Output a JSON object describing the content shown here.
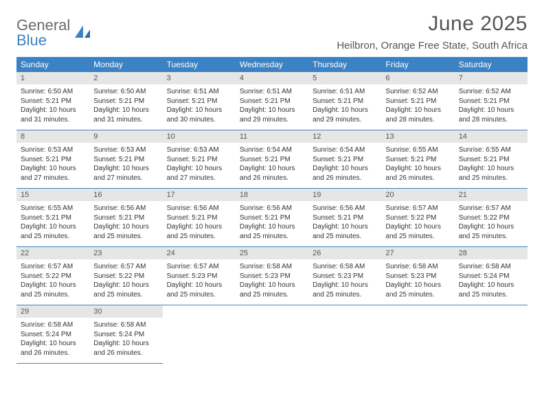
{
  "brand": {
    "word1": "General",
    "word2": "Blue"
  },
  "heading": {
    "title": "June 2025",
    "location": "Heilbron, Orange Free State, South Africa"
  },
  "style": {
    "header_bg": "#3b82c4",
    "header_text": "#ffffff",
    "daynum_bg": "#e6e6e6",
    "cell_border": "#3b82c4",
    "body_text": "#333333",
    "title_color": "#555555",
    "logo_gray": "#6b6b6b",
    "logo_blue": "#3b82c4"
  },
  "day_names": [
    "Sunday",
    "Monday",
    "Tuesday",
    "Wednesday",
    "Thursday",
    "Friday",
    "Saturday"
  ],
  "weeks": [
    [
      {
        "n": "1",
        "sr": "Sunrise: 6:50 AM",
        "ss": "Sunset: 5:21 PM",
        "d1": "Daylight: 10 hours",
        "d2": "and 31 minutes."
      },
      {
        "n": "2",
        "sr": "Sunrise: 6:50 AM",
        "ss": "Sunset: 5:21 PM",
        "d1": "Daylight: 10 hours",
        "d2": "and 31 minutes."
      },
      {
        "n": "3",
        "sr": "Sunrise: 6:51 AM",
        "ss": "Sunset: 5:21 PM",
        "d1": "Daylight: 10 hours",
        "d2": "and 30 minutes."
      },
      {
        "n": "4",
        "sr": "Sunrise: 6:51 AM",
        "ss": "Sunset: 5:21 PM",
        "d1": "Daylight: 10 hours",
        "d2": "and 29 minutes."
      },
      {
        "n": "5",
        "sr": "Sunrise: 6:51 AM",
        "ss": "Sunset: 5:21 PM",
        "d1": "Daylight: 10 hours",
        "d2": "and 29 minutes."
      },
      {
        "n": "6",
        "sr": "Sunrise: 6:52 AM",
        "ss": "Sunset: 5:21 PM",
        "d1": "Daylight: 10 hours",
        "d2": "and 28 minutes."
      },
      {
        "n": "7",
        "sr": "Sunrise: 6:52 AM",
        "ss": "Sunset: 5:21 PM",
        "d1": "Daylight: 10 hours",
        "d2": "and 28 minutes."
      }
    ],
    [
      {
        "n": "8",
        "sr": "Sunrise: 6:53 AM",
        "ss": "Sunset: 5:21 PM",
        "d1": "Daylight: 10 hours",
        "d2": "and 27 minutes."
      },
      {
        "n": "9",
        "sr": "Sunrise: 6:53 AM",
        "ss": "Sunset: 5:21 PM",
        "d1": "Daylight: 10 hours",
        "d2": "and 27 minutes."
      },
      {
        "n": "10",
        "sr": "Sunrise: 6:53 AM",
        "ss": "Sunset: 5:21 PM",
        "d1": "Daylight: 10 hours",
        "d2": "and 27 minutes."
      },
      {
        "n": "11",
        "sr": "Sunrise: 6:54 AM",
        "ss": "Sunset: 5:21 PM",
        "d1": "Daylight: 10 hours",
        "d2": "and 26 minutes."
      },
      {
        "n": "12",
        "sr": "Sunrise: 6:54 AM",
        "ss": "Sunset: 5:21 PM",
        "d1": "Daylight: 10 hours",
        "d2": "and 26 minutes."
      },
      {
        "n": "13",
        "sr": "Sunrise: 6:55 AM",
        "ss": "Sunset: 5:21 PM",
        "d1": "Daylight: 10 hours",
        "d2": "and 26 minutes."
      },
      {
        "n": "14",
        "sr": "Sunrise: 6:55 AM",
        "ss": "Sunset: 5:21 PM",
        "d1": "Daylight: 10 hours",
        "d2": "and 25 minutes."
      }
    ],
    [
      {
        "n": "15",
        "sr": "Sunrise: 6:55 AM",
        "ss": "Sunset: 5:21 PM",
        "d1": "Daylight: 10 hours",
        "d2": "and 25 minutes."
      },
      {
        "n": "16",
        "sr": "Sunrise: 6:56 AM",
        "ss": "Sunset: 5:21 PM",
        "d1": "Daylight: 10 hours",
        "d2": "and 25 minutes."
      },
      {
        "n": "17",
        "sr": "Sunrise: 6:56 AM",
        "ss": "Sunset: 5:21 PM",
        "d1": "Daylight: 10 hours",
        "d2": "and 25 minutes."
      },
      {
        "n": "18",
        "sr": "Sunrise: 6:56 AM",
        "ss": "Sunset: 5:21 PM",
        "d1": "Daylight: 10 hours",
        "d2": "and 25 minutes."
      },
      {
        "n": "19",
        "sr": "Sunrise: 6:56 AM",
        "ss": "Sunset: 5:21 PM",
        "d1": "Daylight: 10 hours",
        "d2": "and 25 minutes."
      },
      {
        "n": "20",
        "sr": "Sunrise: 6:57 AM",
        "ss": "Sunset: 5:22 PM",
        "d1": "Daylight: 10 hours",
        "d2": "and 25 minutes."
      },
      {
        "n": "21",
        "sr": "Sunrise: 6:57 AM",
        "ss": "Sunset: 5:22 PM",
        "d1": "Daylight: 10 hours",
        "d2": "and 25 minutes."
      }
    ],
    [
      {
        "n": "22",
        "sr": "Sunrise: 6:57 AM",
        "ss": "Sunset: 5:22 PM",
        "d1": "Daylight: 10 hours",
        "d2": "and 25 minutes."
      },
      {
        "n": "23",
        "sr": "Sunrise: 6:57 AM",
        "ss": "Sunset: 5:22 PM",
        "d1": "Daylight: 10 hours",
        "d2": "and 25 minutes."
      },
      {
        "n": "24",
        "sr": "Sunrise: 6:57 AM",
        "ss": "Sunset: 5:23 PM",
        "d1": "Daylight: 10 hours",
        "d2": "and 25 minutes."
      },
      {
        "n": "25",
        "sr": "Sunrise: 6:58 AM",
        "ss": "Sunset: 5:23 PM",
        "d1": "Daylight: 10 hours",
        "d2": "and 25 minutes."
      },
      {
        "n": "26",
        "sr": "Sunrise: 6:58 AM",
        "ss": "Sunset: 5:23 PM",
        "d1": "Daylight: 10 hours",
        "d2": "and 25 minutes."
      },
      {
        "n": "27",
        "sr": "Sunrise: 6:58 AM",
        "ss": "Sunset: 5:23 PM",
        "d1": "Daylight: 10 hours",
        "d2": "and 25 minutes."
      },
      {
        "n": "28",
        "sr": "Sunrise: 6:58 AM",
        "ss": "Sunset: 5:24 PM",
        "d1": "Daylight: 10 hours",
        "d2": "and 25 minutes."
      }
    ],
    [
      {
        "n": "29",
        "sr": "Sunrise: 6:58 AM",
        "ss": "Sunset: 5:24 PM",
        "d1": "Daylight: 10 hours",
        "d2": "and 26 minutes."
      },
      {
        "n": "30",
        "sr": "Sunrise: 6:58 AM",
        "ss": "Sunset: 5:24 PM",
        "d1": "Daylight: 10 hours",
        "d2": "and 26 minutes."
      },
      null,
      null,
      null,
      null,
      null
    ]
  ]
}
